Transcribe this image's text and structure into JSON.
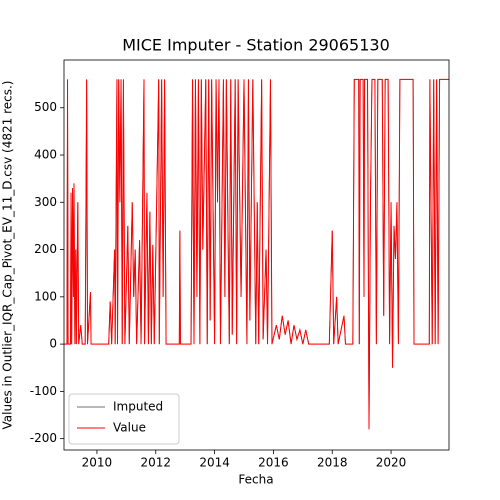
{
  "chart_data": {
    "type": "line",
    "title": "MICE Imputer - Station 29065130",
    "xlabel": "Fecha",
    "ylabel": "Values in Outlier_IQR_Cap_Pivot_EV_11_D.csv (4821 recs.)",
    "x": [
      2008.88,
      2008.98,
      2009.0,
      2009.02,
      2009.1,
      2009.12,
      2009.14,
      2009.17,
      2009.2,
      2009.22,
      2009.25,
      2009.28,
      2009.3,
      2009.35,
      2009.38,
      2009.45,
      2009.5,
      2009.6,
      2009.65,
      2009.68,
      2009.78,
      2009.8,
      2010.4,
      2010.45,
      2010.5,
      2010.6,
      2010.62,
      2010.68,
      2010.7,
      2010.74,
      2010.78,
      2010.82,
      2010.86,
      2010.9,
      2010.95,
      2011.05,
      2011.1,
      2011.2,
      2011.25,
      2011.3,
      2011.35,
      2011.45,
      2011.5,
      2011.6,
      2011.62,
      2011.7,
      2011.75,
      2011.8,
      2011.85,
      2011.9,
      2011.95,
      2012.1,
      2012.12,
      2012.2,
      2012.25,
      2012.3,
      2012.35,
      2012.8,
      2012.82,
      2012.84,
      2013.2,
      2013.25,
      2013.3,
      2013.35,
      2013.4,
      2013.45,
      2013.5,
      2013.55,
      2013.6,
      2013.7,
      2013.75,
      2013.8,
      2013.85,
      2013.9,
      2014.0,
      2014.05,
      2014.1,
      2014.15,
      2014.2,
      2014.3,
      2014.35,
      2014.4,
      2014.5,
      2014.55,
      2014.6,
      2014.7,
      2014.75,
      2014.8,
      2014.9,
      2015.0,
      2015.1,
      2015.15,
      2015.2,
      2015.3,
      2015.4,
      2015.45,
      2015.5,
      2015.6,
      2015.65,
      2015.75,
      2015.8,
      2015.9,
      2015.95,
      2016.1,
      2016.2,
      2016.3,
      2016.4,
      2016.5,
      2016.6,
      2016.7,
      2016.8,
      2016.9,
      2017.0,
      2017.1,
      2017.2,
      2017.9,
      2018.0,
      2018.05,
      2018.15,
      2018.2,
      2018.4,
      2018.45,
      2018.7,
      2018.75,
      2018.9,
      2018.92,
      2018.95,
      2019.05,
      2019.08,
      2019.1,
      2019.2,
      2019.25,
      2019.3,
      2019.35,
      2019.45,
      2019.5,
      2019.55,
      2019.7,
      2019.75,
      2019.8,
      2019.9,
      2019.95,
      2020.0,
      2020.05,
      2020.1,
      2020.15,
      2020.2,
      2020.25,
      2020.3,
      2020.75,
      2020.78,
      2021.3,
      2021.32,
      2021.4,
      2021.45,
      2021.5,
      2021.55,
      2021.6,
      2021.65,
      2021.97
    ],
    "series": [
      {
        "name": "Imputed",
        "color": "#404040",
        "values": [
          0,
          0,
          560,
          0,
          0,
          320,
          0,
          330,
          100,
          340,
          0,
          200,
          0,
          300,
          0,
          40,
          0,
          0,
          560,
          0,
          110,
          0,
          0,
          90,
          0,
          200,
          0,
          560,
          0,
          560,
          300,
          560,
          0,
          560,
          0,
          250,
          0,
          300,
          100,
          200,
          0,
          220,
          0,
          560,
          0,
          320,
          0,
          280,
          0,
          210,
          0,
          560,
          0,
          560,
          100,
          560,
          0,
          0,
          240,
          0,
          0,
          560,
          0,
          560,
          100,
          560,
          0,
          560,
          200,
          560,
          0,
          560,
          50,
          560,
          0,
          560,
          300,
          560,
          0,
          560,
          100,
          560,
          0,
          560,
          20,
          560,
          0,
          560,
          100,
          560,
          0,
          560,
          50,
          560,
          0,
          300,
          0,
          560,
          10,
          200,
          0,
          560,
          0,
          40,
          10,
          60,
          20,
          50,
          0,
          40,
          10,
          30,
          0,
          30,
          0,
          0,
          240,
          0,
          100,
          0,
          60,
          0,
          0,
          560,
          560,
          0,
          560,
          560,
          100,
          560,
          560,
          -180,
          300,
          560,
          560,
          0,
          560,
          560,
          60,
          560,
          560,
          0,
          300,
          -50,
          250,
          180,
          300,
          0,
          560,
          560,
          0,
          0,
          560,
          0,
          560,
          0,
          560,
          0,
          560,
          560
        ]
      },
      {
        "name": "Value",
        "color": "#ff0000",
        "values": [
          0,
          0,
          560,
          0,
          0,
          320,
          0,
          330,
          100,
          340,
          0,
          200,
          0,
          300,
          0,
          40,
          0,
          0,
          560,
          0,
          110,
          0,
          0,
          90,
          0,
          200,
          0,
          560,
          0,
          560,
          300,
          560,
          0,
          560,
          0,
          250,
          0,
          300,
          100,
          200,
          0,
          220,
          0,
          560,
          0,
          320,
          0,
          280,
          0,
          210,
          0,
          560,
          0,
          560,
          100,
          560,
          0,
          0,
          240,
          0,
          0,
          560,
          0,
          560,
          100,
          560,
          0,
          560,
          200,
          560,
          0,
          560,
          50,
          560,
          0,
          560,
          300,
          560,
          0,
          560,
          100,
          560,
          0,
          560,
          20,
          560,
          0,
          560,
          100,
          560,
          0,
          560,
          50,
          560,
          0,
          300,
          0,
          560,
          10,
          200,
          0,
          560,
          0,
          40,
          10,
          60,
          20,
          50,
          0,
          40,
          10,
          30,
          0,
          30,
          0,
          0,
          240,
          0,
          100,
          0,
          60,
          0,
          0,
          560,
          560,
          0,
          560,
          560,
          100,
          560,
          560,
          -180,
          300,
          560,
          560,
          0,
          560,
          560,
          60,
          560,
          560,
          0,
          300,
          -50,
          250,
          180,
          300,
          0,
          560,
          560,
          0,
          0,
          560,
          0,
          560,
          0,
          560,
          0,
          560,
          560
        ]
      }
    ],
    "xlim": [
      2008.88,
      2021.97
    ],
    "xticks": [
      2010,
      2012,
      2014,
      2016,
      2018,
      2020
    ],
    "ylim": [
      -224,
      601
    ],
    "yticks": [
      -200,
      -100,
      0,
      100,
      200,
      300,
      400,
      500
    ],
    "legend": "lower left",
    "grid": false
  }
}
